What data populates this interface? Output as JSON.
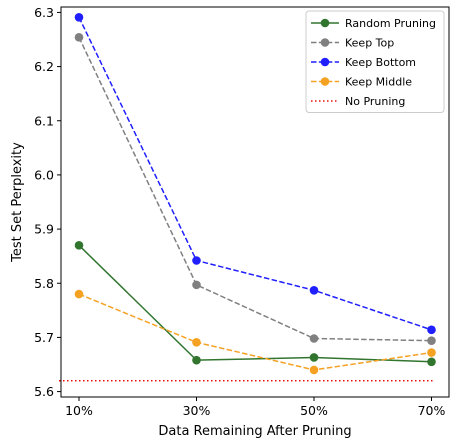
{
  "chart_data": {
    "type": "line",
    "title": "",
    "xlabel": "Data Remaining After Pruning",
    "ylabel": "Test Set Perplexity",
    "categories": [
      "10%",
      "30%",
      "50%",
      "70%"
    ],
    "ylim": [
      5.59,
      6.31
    ],
    "yticks": [
      "5.6",
      "5.7",
      "5.8",
      "5.9",
      "6.0",
      "6.1",
      "6.2",
      "6.3"
    ],
    "grid": false,
    "legend_position": "top-right",
    "series": [
      {
        "name": "Random Pruning",
        "values": [
          5.87,
          5.658,
          5.663,
          5.655
        ],
        "color": "#31752f",
        "dash": "solid",
        "marker": true
      },
      {
        "name": "Keep Top",
        "values": [
          6.254,
          5.797,
          5.698,
          5.694
        ],
        "color": "#808080",
        "dash": "dashed",
        "marker": true
      },
      {
        "name": "Keep Bottom",
        "values": [
          6.291,
          5.842,
          5.787,
          5.714
        ],
        "color": "#1f1fff",
        "dash": "dashed",
        "marker": true
      },
      {
        "name": "Keep Middle",
        "values": [
          5.78,
          5.691,
          5.64,
          5.672
        ],
        "color": "#f5a122",
        "dash": "dashed",
        "marker": true
      },
      {
        "name": "No Pruning",
        "values": [
          5.62,
          5.62,
          5.62,
          5.62
        ],
        "color": "#e8110f",
        "dash": "dotted",
        "marker": false
      }
    ]
  }
}
